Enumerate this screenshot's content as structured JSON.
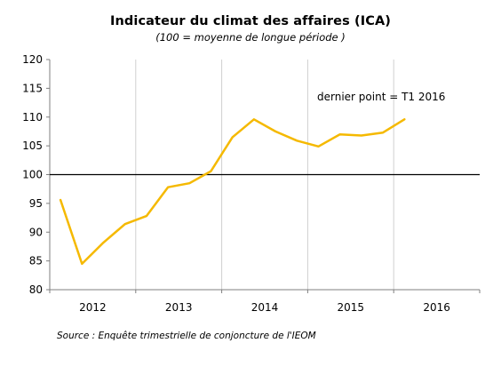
{
  "chart_data": {
    "type": "line",
    "title": "Indicateur du climat des affaires (ICA)",
    "subtitle": "(100 = moyenne de longue période )",
    "source": "Source : Enquête trimestrielle de conjoncture de l'IEOM",
    "annotation": "dernier point = T1 2016",
    "xlabel": "",
    "ylabel": "",
    "ylim": [
      80,
      120
    ],
    "yticks": [
      80,
      85,
      90,
      95,
      100,
      105,
      110,
      115,
      120
    ],
    "x_categories": [
      "2012",
      "2013",
      "2014",
      "2015",
      "2016"
    ],
    "reference_line": 100,
    "grid": "vertical",
    "series": [
      {
        "color": "#F5B900",
        "x": [
          "T1 2012",
          "T2 2012",
          "T3 2012",
          "T4 2012",
          "T1 2013",
          "T2 2013",
          "T3 2013",
          "T4 2013",
          "T1 2014",
          "T2 2014",
          "T3 2014",
          "T4 2014",
          "T1 2015",
          "T2 2015",
          "T3 2015",
          "T4 2015",
          "T1 2016"
        ],
        "values": [
          95.6,
          84.5,
          88.2,
          91.4,
          92.8,
          97.8,
          98.5,
          100.6,
          106.5,
          109.6,
          107.5,
          105.9,
          104.9,
          107.0,
          106.8,
          107.3,
          109.6
        ]
      }
    ]
  }
}
